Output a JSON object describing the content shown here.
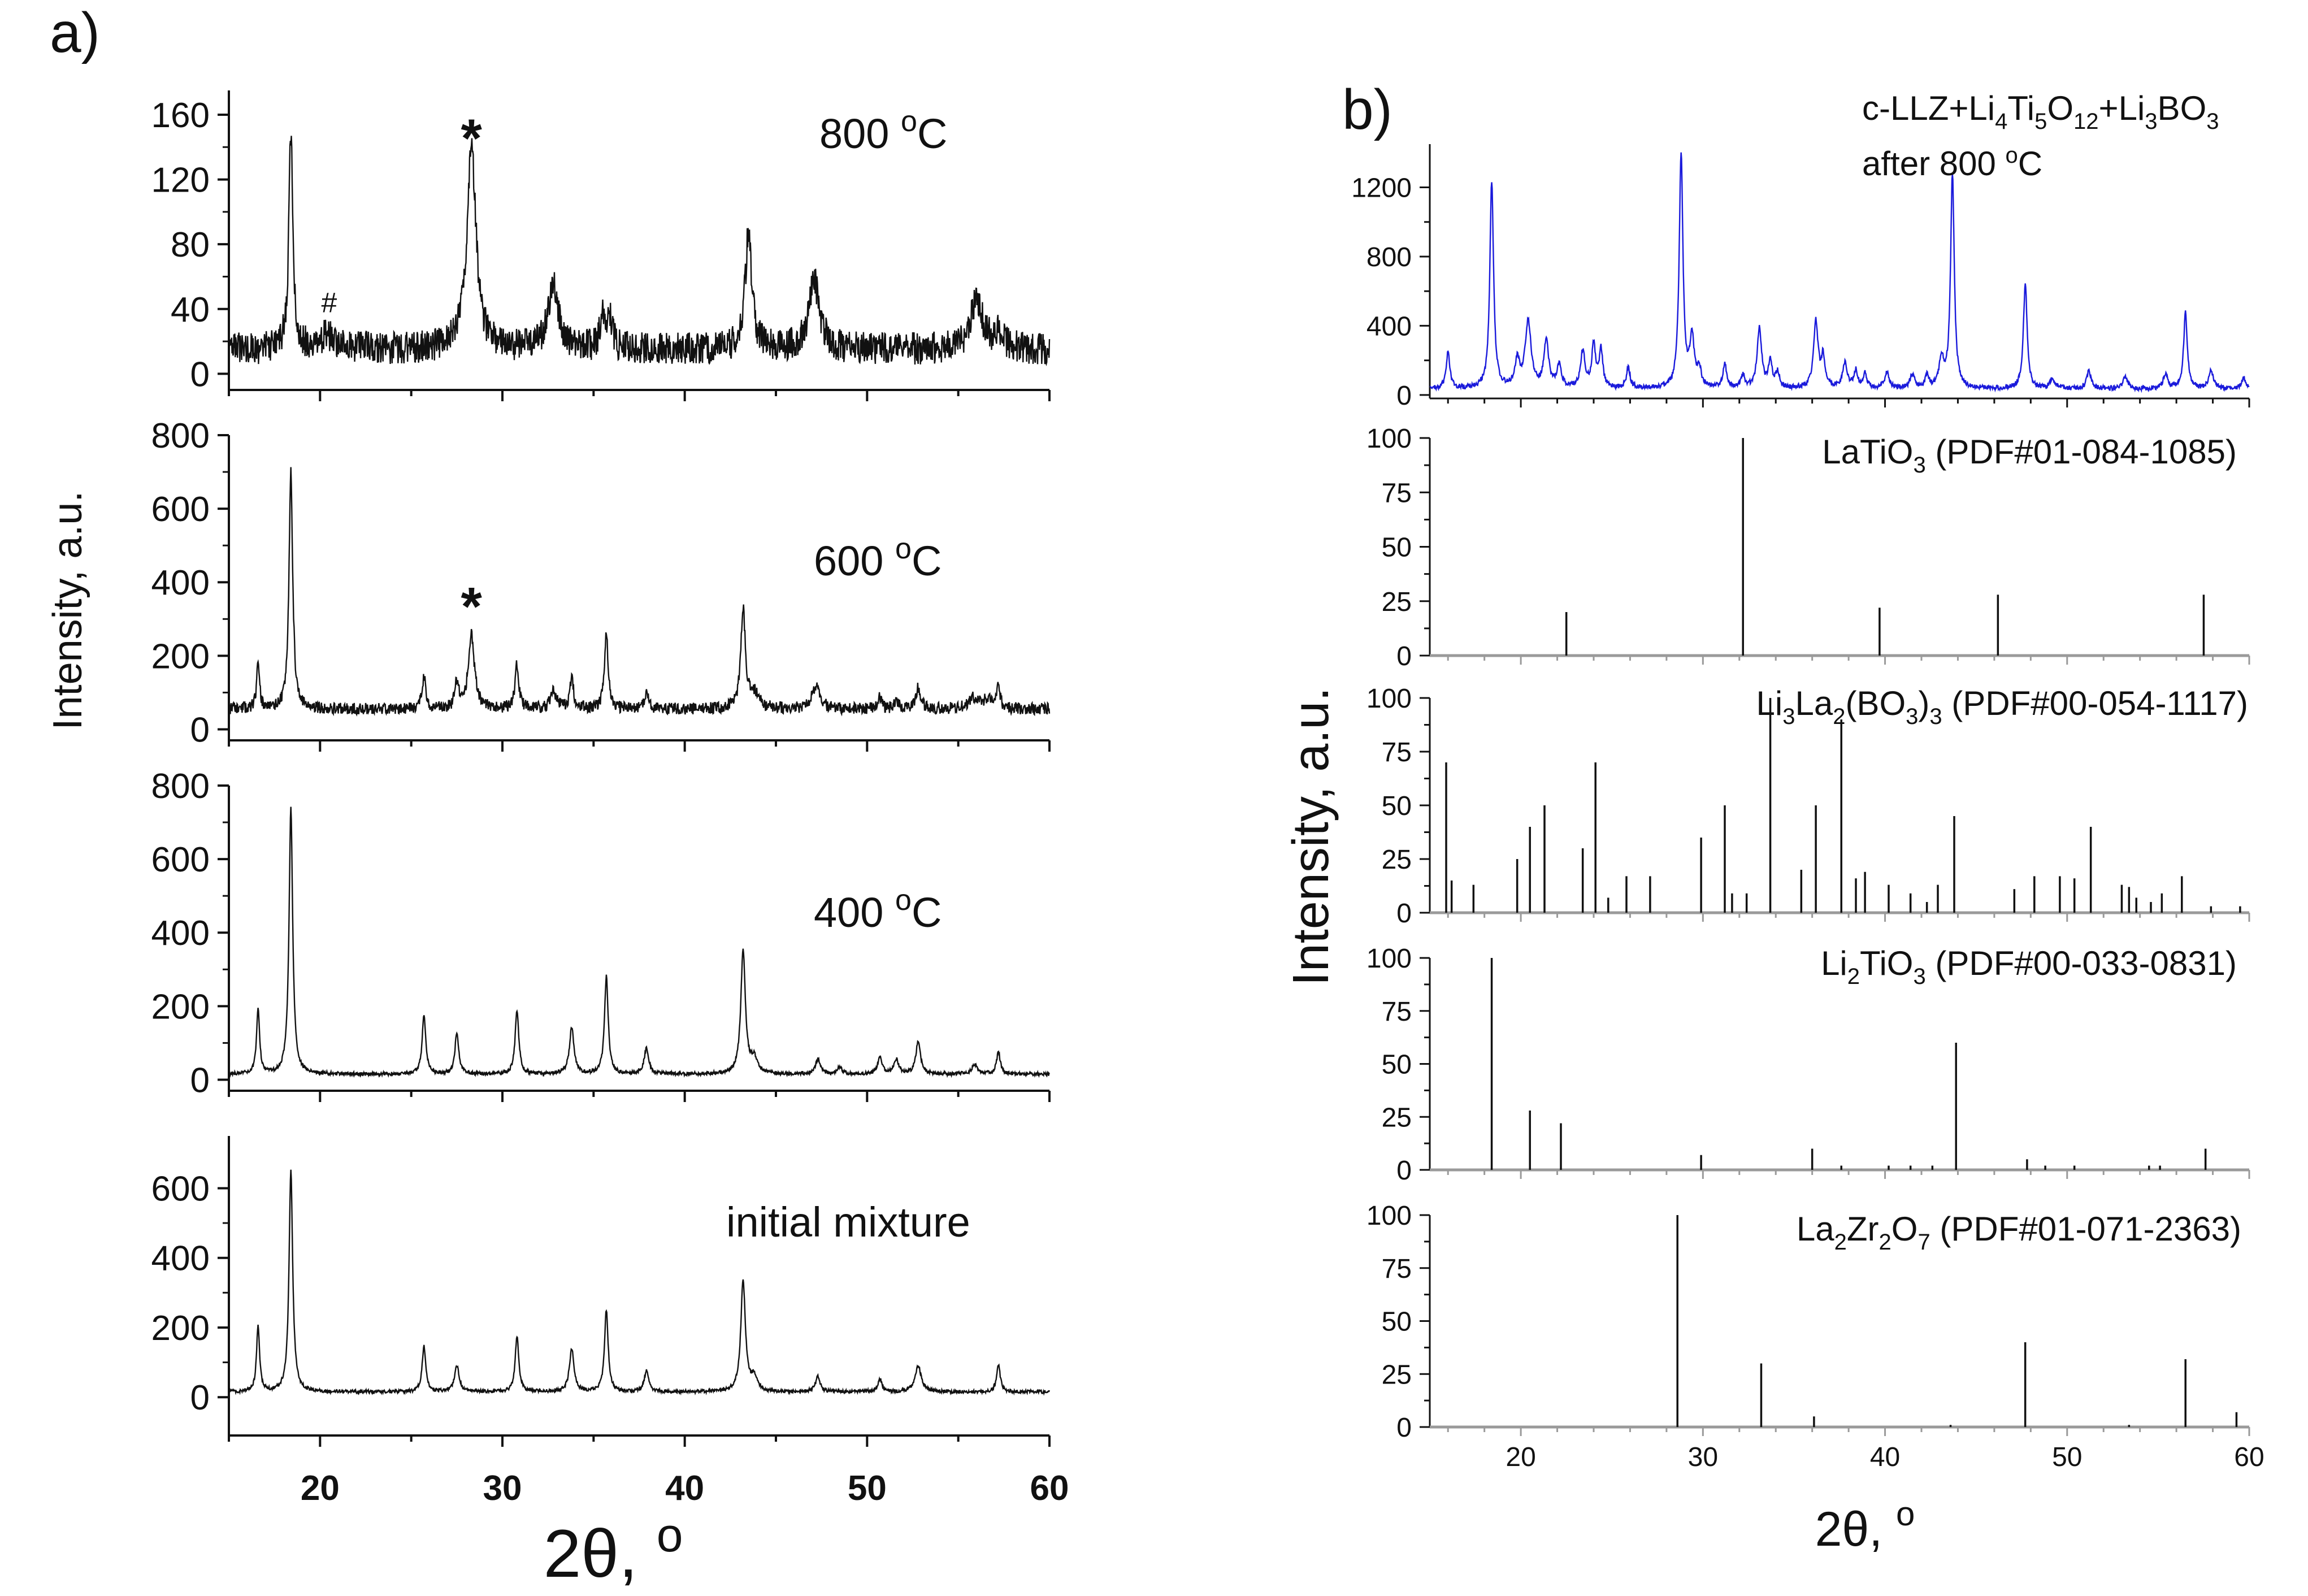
{
  "colors": {
    "black": "#111111",
    "blue": "#1a1adb",
    "pale_axis": "#9a9a9a"
  },
  "chart_data": [
    {
      "panel": "a)",
      "type": "line",
      "xlabel": "2θ, o",
      "ylabel": "Intensity, a.u.",
      "xlim": [
        15,
        60
      ],
      "xticks": [
        "20",
        "30",
        "40",
        "50",
        "60"
      ],
      "series": [
        {
          "name": "800 oC",
          "label_main": "800 ",
          "label_sup": "o",
          "label_tail": "C",
          "ylim": [
            -10,
            175
          ],
          "yticks": [
            "0",
            "40",
            "80",
            "120",
            "160"
          ],
          "baseline": 15,
          "noise": 10,
          "noise_seed": 3,
          "peaks": [
            [
              18.4,
              135,
              0.13
            ],
            [
              20.4,
              8,
              0.6
            ],
            [
              28.3,
              125,
              0.3
            ],
            [
              32.8,
              38,
              0.35
            ],
            [
              35.5,
              22,
              0.15
            ],
            [
              35.9,
              20,
              0.15
            ],
            [
              43.5,
              72,
              0.22
            ],
            [
              47.1,
              42,
              0.35
            ],
            [
              56.0,
              30,
              0.4
            ],
            [
              57.2,
              10,
              0.3
            ]
          ],
          "annotations": [
            {
              "text": "*",
              "x": 28.3,
              "y": 148
            },
            {
              "text": "#",
              "x": 20.5,
              "y": 38
            }
          ]
        },
        {
          "name": "600 oC",
          "label_main": "600 ",
          "label_sup": "o",
          "label_tail": "C",
          "ylim": [
            -30,
            800
          ],
          "yticks": [
            "0",
            "200",
            "400",
            "600",
            "800"
          ],
          "baseline": 55,
          "noise": 16,
          "noise_seed": 11,
          "peaks": [
            [
              16.6,
              115,
              0.1
            ],
            [
              18.4,
              650,
              0.12
            ],
            [
              25.7,
              85,
              0.12
            ],
            [
              27.5,
              70,
              0.12
            ],
            [
              28.3,
              200,
              0.2
            ],
            [
              30.8,
              120,
              0.12
            ],
            [
              32.8,
              45,
              0.2
            ],
            [
              33.8,
              85,
              0.12
            ],
            [
              35.7,
              205,
              0.12
            ],
            [
              37.9,
              40,
              0.15
            ],
            [
              43.2,
              270,
              0.15
            ],
            [
              43.8,
              40,
              0.3
            ],
            [
              47.2,
              65,
              0.25
            ],
            [
              50.7,
              30,
              0.12
            ],
            [
              51.6,
              25,
              0.12
            ],
            [
              52.8,
              60,
              0.15
            ],
            [
              55.8,
              30,
              0.3
            ],
            [
              56.6,
              25,
              0.3
            ],
            [
              57.2,
              55,
              0.12
            ]
          ],
          "annotations": [
            {
              "text": "*",
              "x": 28.3,
              "y": 345
            }
          ]
        },
        {
          "name": "400 oC",
          "label_main": "400 ",
          "label_sup": "o",
          "label_tail": "C",
          "ylim": [
            -30,
            800
          ],
          "yticks": [
            "0",
            "200",
            "400",
            "600",
            "800"
          ],
          "baseline": 15,
          "noise": 5,
          "noise_seed": 21,
          "peaks": [
            [
              16.6,
              178,
              0.1
            ],
            [
              18.4,
              725,
              0.12
            ],
            [
              25.7,
              160,
              0.12
            ],
            [
              27.5,
              115,
              0.12
            ],
            [
              30.8,
              175,
              0.12
            ],
            [
              33.8,
              125,
              0.15
            ],
            [
              35.7,
              265,
              0.12
            ],
            [
              37.9,
              70,
              0.15
            ],
            [
              43.2,
              335,
              0.15
            ],
            [
              43.8,
              40,
              0.2
            ],
            [
              47.3,
              40,
              0.15
            ],
            [
              48.5,
              20,
              0.15
            ],
            [
              50.7,
              45,
              0.15
            ],
            [
              51.6,
              40,
              0.15
            ],
            [
              52.8,
              90,
              0.15
            ],
            [
              55.9,
              25,
              0.2
            ],
            [
              57.2,
              60,
              0.12
            ]
          ],
          "annotations": []
        },
        {
          "name": "initial mixture",
          "label_main": "initial mixture",
          "label_sup": "",
          "label_tail": "",
          "ylim": [
            -110,
            750
          ],
          "yticks": [
            "0",
            "200",
            "400",
            "600"
          ],
          "baseline": 15,
          "noise": 5,
          "noise_seed": 33,
          "peaks": [
            [
              16.6,
              190,
              0.1
            ],
            [
              18.4,
              635,
              0.12
            ],
            [
              25.7,
              130,
              0.12
            ],
            [
              27.5,
              75,
              0.15
            ],
            [
              30.8,
              160,
              0.12
            ],
            [
              33.8,
              125,
              0.15
            ],
            [
              35.7,
              235,
              0.12
            ],
            [
              37.9,
              60,
              0.15
            ],
            [
              43.2,
              320,
              0.15
            ],
            [
              43.8,
              40,
              0.2
            ],
            [
              47.3,
              45,
              0.15
            ],
            [
              50.7,
              35,
              0.15
            ],
            [
              52.8,
              75,
              0.2
            ],
            [
              57.2,
              80,
              0.12
            ]
          ],
          "annotations": []
        }
      ]
    },
    {
      "panel": "b)",
      "type": "line",
      "xlabel": "2θ, o",
      "ylabel": "Intensity, a.u.",
      "xlim": [
        15,
        60
      ],
      "xticks": [
        "20",
        "30",
        "40",
        "50",
        "60"
      ],
      "pattern": {
        "title_line1_parts": [
          "c-LLZ+Li",
          "4",
          "Ti",
          "5",
          "O",
          "12",
          "+Li",
          "3",
          "BO",
          "3"
        ],
        "title_line2_main": "after 800 ",
        "title_line2_sup": "o",
        "title_line2_tail": "C",
        "ylim": [
          -20,
          1450
        ],
        "yticks": [
          "0",
          "400",
          "800",
          "1200"
        ],
        "baseline": 35,
        "noise": 14,
        "noise_seed": 47,
        "peaks": [
          [
            16.0,
            210,
            0.12
          ],
          [
            18.4,
            1200,
            0.12
          ],
          [
            19.8,
            150,
            0.15
          ],
          [
            20.4,
            380,
            0.2
          ],
          [
            21.4,
            280,
            0.15
          ],
          [
            22.1,
            130,
            0.15
          ],
          [
            23.4,
            210,
            0.15
          ],
          [
            24.0,
            250,
            0.12
          ],
          [
            24.4,
            220,
            0.12
          ],
          [
            25.9,
            120,
            0.12
          ],
          [
            28.8,
            1360,
            0.12
          ],
          [
            29.4,
            280,
            0.15
          ],
          [
            29.8,
            100,
            0.12
          ],
          [
            31.2,
            140,
            0.12
          ],
          [
            32.2,
            70,
            0.12
          ],
          [
            33.1,
            350,
            0.15
          ],
          [
            33.7,
            150,
            0.12
          ],
          [
            34.1,
            90,
            0.12
          ],
          [
            36.2,
            390,
            0.15
          ],
          [
            36.6,
            170,
            0.12
          ],
          [
            37.8,
            150,
            0.15
          ],
          [
            38.4,
            100,
            0.12
          ],
          [
            38.9,
            90,
            0.12
          ],
          [
            40.1,
            90,
            0.15
          ],
          [
            41.5,
            80,
            0.15
          ],
          [
            42.3,
            70,
            0.12
          ],
          [
            43.1,
            170,
            0.15
          ],
          [
            43.7,
            1240,
            0.12
          ],
          [
            47.7,
            610,
            0.12
          ],
          [
            49.2,
            60,
            0.15
          ],
          [
            51.2,
            100,
            0.15
          ],
          [
            53.2,
            70,
            0.15
          ],
          [
            55.4,
            80,
            0.15
          ],
          [
            56.5,
            440,
            0.12
          ],
          [
            57.9,
            100,
            0.15
          ],
          [
            59.7,
            60,
            0.15
          ]
        ]
      },
      "references": [
        {
          "parts": [
            "LaTiO",
            "3",
            " (PDF#01-084-1085)"
          ],
          "ylim": [
            0,
            100
          ],
          "yticks": [
            "0",
            "25",
            "50",
            "75",
            "100"
          ],
          "sticks": [
            [
              22.5,
              20
            ],
            [
              32.2,
              100
            ],
            [
              39.7,
              22
            ],
            [
              46.2,
              28
            ],
            [
              57.5,
              28
            ]
          ]
        },
        {
          "parts": [
            "Li",
            "3",
            "La",
            "2",
            "(BO",
            "3",
            ")",
            "3",
            " (PDF#00-054-1117)"
          ],
          "ylim": [
            0,
            100
          ],
          "yticks": [
            "0",
            "25",
            "50",
            "75",
            "100"
          ],
          "sticks": [
            [
              15.9,
              70
            ],
            [
              16.2,
              15
            ],
            [
              17.4,
              13
            ],
            [
              19.8,
              25
            ],
            [
              20.5,
              40
            ],
            [
              21.3,
              50
            ],
            [
              23.4,
              30
            ],
            [
              24.1,
              70
            ],
            [
              24.8,
              7
            ],
            [
              25.8,
              17
            ],
            [
              27.1,
              17
            ],
            [
              29.9,
              35
            ],
            [
              31.2,
              50
            ],
            [
              31.6,
              9
            ],
            [
              32.4,
              9
            ],
            [
              33.7,
              100
            ],
            [
              35.4,
              20
            ],
            [
              36.2,
              50
            ],
            [
              37.6,
              90
            ],
            [
              38.4,
              16
            ],
            [
              38.9,
              19
            ],
            [
              40.2,
              13
            ],
            [
              41.4,
              9
            ],
            [
              42.3,
              5
            ],
            [
              42.9,
              13
            ],
            [
              43.8,
              45
            ],
            [
              47.1,
              11
            ],
            [
              48.2,
              17
            ],
            [
              49.6,
              17
            ],
            [
              50.4,
              16
            ],
            [
              51.3,
              40
            ],
            [
              53.0,
              13
            ],
            [
              53.4,
              12
            ],
            [
              53.8,
              7
            ],
            [
              54.6,
              5
            ],
            [
              55.2,
              9
            ],
            [
              56.3,
              17
            ],
            [
              57.9,
              3
            ],
            [
              59.5,
              3
            ]
          ]
        },
        {
          "parts": [
            "Li",
            "2",
            "TiO",
            "3",
            " (PDF#00-033-0831)"
          ],
          "ylim": [
            0,
            100
          ],
          "yticks": [
            "0",
            "25",
            "50",
            "75",
            "100"
          ],
          "sticks": [
            [
              18.4,
              100
            ],
            [
              20.5,
              28
            ],
            [
              22.2,
              22
            ],
            [
              29.9,
              7
            ],
            [
              36.0,
              10
            ],
            [
              37.6,
              2
            ],
            [
              40.2,
              2
            ],
            [
              41.4,
              2
            ],
            [
              42.6,
              2
            ],
            [
              43.9,
              60
            ],
            [
              47.8,
              5
            ],
            [
              48.8,
              2
            ],
            [
              50.4,
              2
            ],
            [
              54.5,
              2
            ],
            [
              55.1,
              2
            ],
            [
              57.6,
              10
            ]
          ]
        },
        {
          "parts": [
            "La",
            "2",
            "Zr",
            "2",
            "O",
            "7",
            " (PDF#01-071-2363)"
          ],
          "ylim": [
            0,
            100
          ],
          "yticks": [
            "0",
            "25",
            "50",
            "75",
            "100"
          ],
          "sticks": [
            [
              28.6,
              100
            ],
            [
              33.2,
              30
            ],
            [
              36.1,
              5
            ],
            [
              43.6,
              1
            ],
            [
              47.7,
              40
            ],
            [
              53.4,
              1
            ],
            [
              56.5,
              32
            ],
            [
              59.3,
              7
            ]
          ]
        }
      ]
    }
  ]
}
